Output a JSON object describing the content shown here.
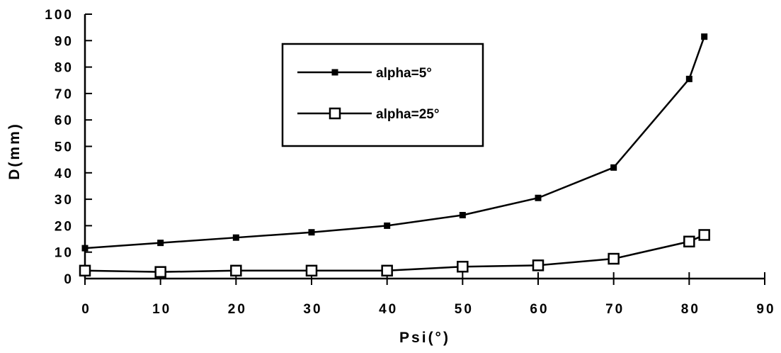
{
  "chart_data": {
    "type": "line",
    "title": "",
    "xlabel": "Psi(°)",
    "ylabel": "D(mm)",
    "xlim": [
      0,
      90
    ],
    "ylim": [
      0,
      100
    ],
    "xticks": [
      "0",
      "10",
      "20",
      "30",
      "40",
      "50",
      "60",
      "70",
      "80",
      "90"
    ],
    "yticks": [
      "0",
      "10",
      "20",
      "30",
      "40",
      "50",
      "60",
      "70",
      "80",
      "90",
      "100"
    ],
    "grid": false,
    "legend_position": "top-center",
    "series": [
      {
        "name": "alpha=5°",
        "marker": "filled-square",
        "x": [
          0,
          10,
          20,
          30,
          40,
          50,
          60,
          70,
          80,
          82
        ],
        "y": [
          11.5,
          13.5,
          15.5,
          17.5,
          20,
          24,
          30.5,
          42,
          75.5,
          91.5
        ]
      },
      {
        "name": "alpha=25°",
        "marker": "open-square",
        "x": [
          0,
          10,
          20,
          30,
          40,
          50,
          60,
          70,
          80,
          82
        ],
        "y": [
          3,
          2.5,
          3,
          3,
          3,
          4.5,
          5,
          7.5,
          14,
          16.5
        ]
      }
    ]
  }
}
